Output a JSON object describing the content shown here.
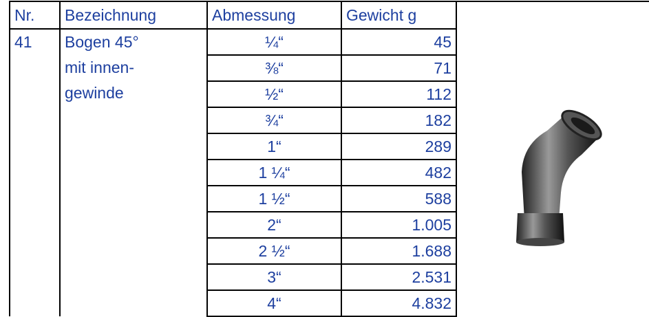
{
  "table": {
    "header": [
      "Nr.",
      "Bezeichnung",
      "Abmessung",
      "Gewicht g"
    ],
    "rows": [
      {
        "nr": "41",
        "description": [
          "Bogen 45°",
          "mit  innen-",
          "gewinde"
        ],
        "sizes": [
          "¼“",
          "⅜“",
          "½“",
          "¾“",
          "1“",
          "1 ¼“",
          "1 ½“",
          "2“",
          "2 ½“",
          "3“",
          "4“"
        ],
        "weights": [
          "45",
          "71",
          "112",
          "182",
          "289",
          "482",
          "588",
          "1.005",
          "1.688",
          "2.531",
          "4.832"
        ]
      }
    ]
  }
}
